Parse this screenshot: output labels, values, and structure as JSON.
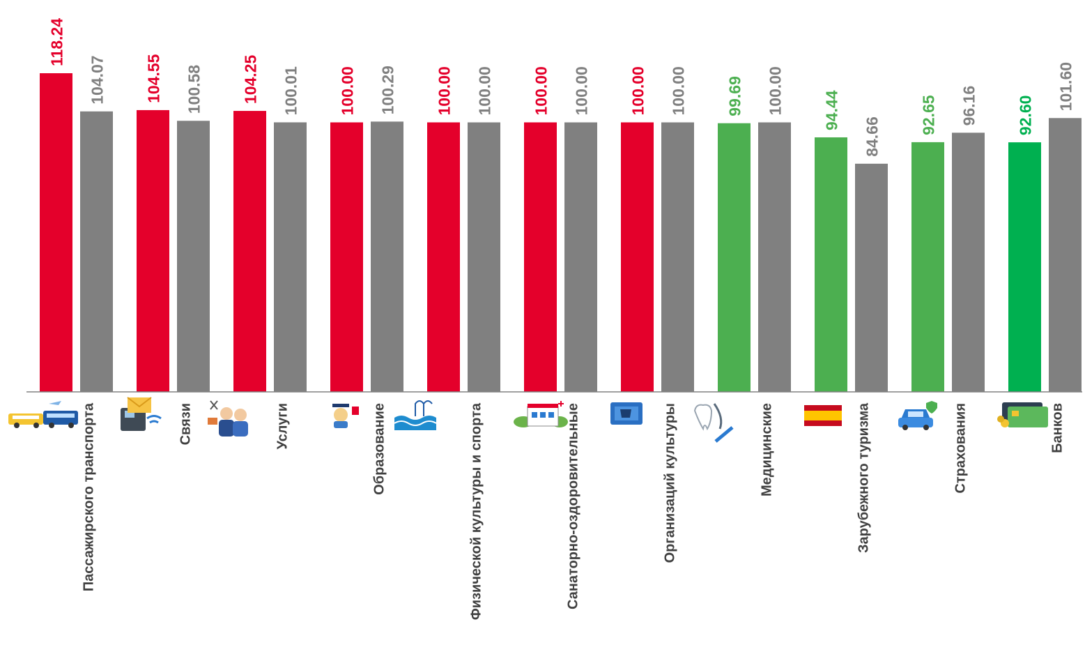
{
  "colors": {
    "increase": "#e4002b",
    "decrease": "#4caf50",
    "decrease_strong": "#00b050",
    "previous": "#808080",
    "axis": "#808080",
    "label": "#404040"
  },
  "chart_data": {
    "type": "bar",
    "title": "",
    "xlabel": "",
    "ylabel": "",
    "ylim": [
      0,
      118.24
    ],
    "grid": false,
    "legend": "none",
    "categories": [
      "Пассажирского транспорта",
      "Связи",
      "Услуги",
      "Образование",
      "Физической культуры и спорта",
      "Санаторно-оздоровительные",
      "Организаций культуры",
      "Медицинские",
      "Зарубежного туризма",
      "Страхования",
      "Банков"
    ],
    "icons": [
      "transport-icon",
      "phone-mail-icon",
      "people-services-icon",
      "graduate-icon",
      "swimming-pool-icon",
      "sanatorium-icon",
      "theater-ticket-icon",
      "medical-tooth-icon",
      "spain-flag-icon",
      "car-insurance-icon",
      "bank-card-icon"
    ],
    "series": [
      {
        "values": [
          118.24,
          104.55,
          104.25,
          100.0,
          100.0,
          100.0,
          100.0,
          99.69,
          94.44,
          92.65,
          92.6
        ],
        "labels": [
          "118.24",
          "104.55",
          "104.25",
          "100.00",
          "100.00",
          "100.00",
          "100.00",
          "99.69",
          "94.44",
          "92.65",
          "92.60"
        ],
        "colors": [
          "#e4002b",
          "#e4002b",
          "#e4002b",
          "#e4002b",
          "#e4002b",
          "#e4002b",
          "#e4002b",
          "#4caf50",
          "#4caf50",
          "#4caf50",
          "#00b050"
        ]
      },
      {
        "values": [
          104.07,
          100.58,
          100.01,
          100.29,
          100.0,
          100.0,
          100.0,
          100.0,
          84.66,
          96.16,
          101.6
        ],
        "labels": [
          "104.07",
          "100.58",
          "100.01",
          "100.29",
          "100.00",
          "100.00",
          "100.00",
          "100.00",
          "84.66",
          "96.16",
          "101.60"
        ],
        "colors": [
          "#808080",
          "#808080",
          "#808080",
          "#808080",
          "#808080",
          "#808080",
          "#808080",
          "#808080",
          "#808080",
          "#808080",
          "#808080"
        ]
      }
    ]
  }
}
